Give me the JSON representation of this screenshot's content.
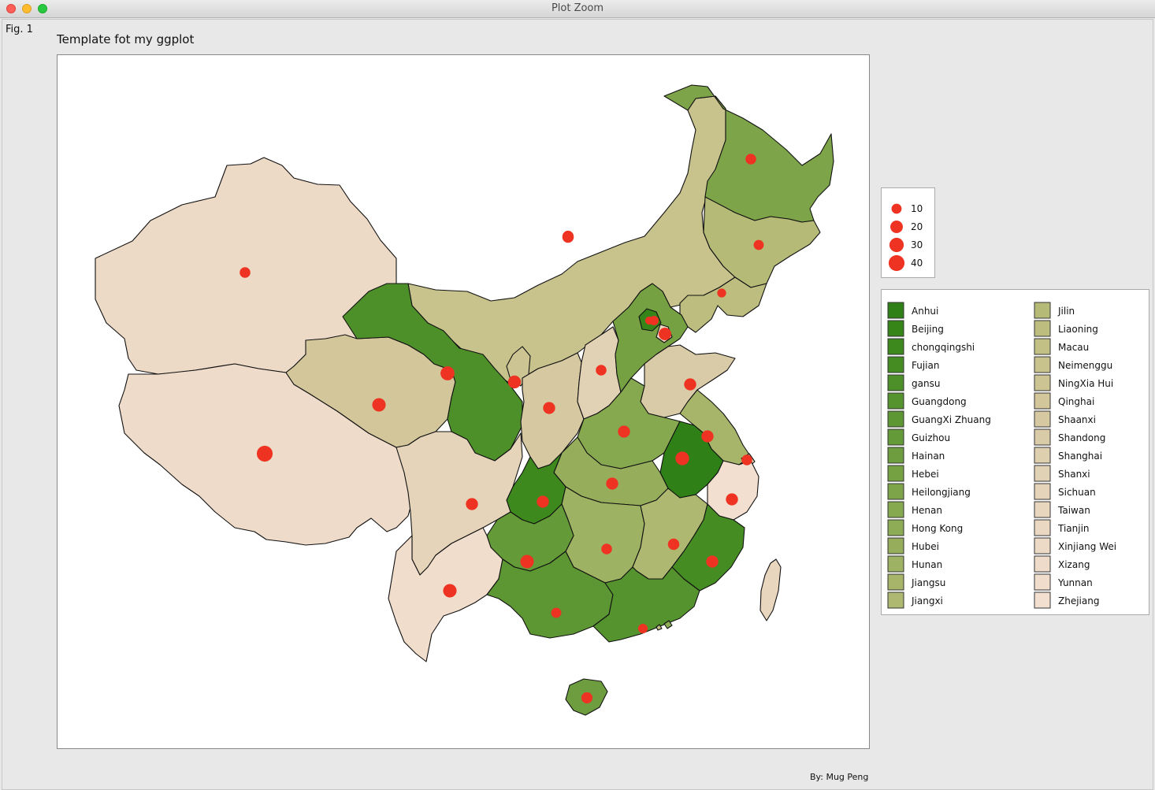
{
  "window": {
    "title": "Plot Zoom"
  },
  "figure": {
    "tag": "Fig. 1",
    "title": "Template fot my ggplot",
    "caption": "By: Mug Peng"
  },
  "colors": {
    "point": "#ee3322",
    "border": "#111111",
    "panel_background": "#ffffff"
  },
  "size_legend": {
    "entries": [
      {
        "label": "10",
        "value": 10
      },
      {
        "label": "20",
        "value": 20
      },
      {
        "label": "30",
        "value": 30
      },
      {
        "label": "40",
        "value": 40
      }
    ]
  },
  "fill_legend": {
    "entries": [
      {
        "label": "Anhui",
        "color": "#2f8016"
      },
      {
        "label": "Beijing",
        "color": "#368519"
      },
      {
        "label": "chongqingshi",
        "color": "#3d891e"
      },
      {
        "label": "Fujian",
        "color": "#458c23"
      },
      {
        "label": "gansu",
        "color": "#4d8f28"
      },
      {
        "label": "Guangdong",
        "color": "#55932e"
      },
      {
        "label": "GuangXi Zhuang",
        "color": "#5d9733"
      },
      {
        "label": "Guizhou",
        "color": "#659a38"
      },
      {
        "label": "Hainan",
        "color": "#6d9d3e"
      },
      {
        "label": "Hebei",
        "color": "#76a143"
      },
      {
        "label": "Heilongjiang",
        "color": "#7ea449"
      },
      {
        "label": "Henan",
        "color": "#86a84f"
      },
      {
        "label": "Hong Kong",
        "color": "#8eab56"
      },
      {
        "label": "Hubei",
        "color": "#96ae5c"
      },
      {
        "label": "Hunan",
        "color": "#9eb263"
      },
      {
        "label": "Jiangsu",
        "color": "#a6b56a"
      },
      {
        "label": "Jiangxi",
        "color": "#aeb870"
      },
      {
        "label": "Jilin",
        "color": "#b5bb77"
      },
      {
        "label": "Liaoning",
        "color": "#bcbd7e"
      },
      {
        "label": "Macau",
        "color": "#c2c085"
      },
      {
        "label": "Neimenggu",
        "color": "#c8c28c"
      },
      {
        "label": "NingXia Hui",
        "color": "#cdc493"
      },
      {
        "label": "Qinghai",
        "color": "#d2c69a"
      },
      {
        "label": "Shaanxi",
        "color": "#d6c8a1"
      },
      {
        "label": "Shandong",
        "color": "#dacba8"
      },
      {
        "label": "Shanghai",
        "color": "#decfaf"
      },
      {
        "label": "Shanxi",
        "color": "#e2d2b5"
      },
      {
        "label": "Sichuan",
        "color": "#e5d4ba"
      },
      {
        "label": "Taiwan",
        "color": "#e8d6bf"
      },
      {
        "label": "Tianjin",
        "color": "#ead8c3"
      },
      {
        "label": "Xinjiang Wei",
        "color": "#ecd9c6"
      },
      {
        "label": "Xizang",
        "color": "#eedbc9"
      },
      {
        "label": "Yunnan",
        "color": "#f0ddcc"
      },
      {
        "label": "Zhejiang",
        "color": "#f2dfd0"
      }
    ]
  },
  "provinces": [
    {
      "name": "Xinjiang Wei",
      "color": "#ecd9c6",
      "value": 12
    },
    {
      "name": "Xizang",
      "color": "#eedbc9",
      "value": 40
    },
    {
      "name": "Qinghai",
      "color": "#d2c69a",
      "value": 25
    },
    {
      "name": "Neimenggu",
      "color": "#c8c28c",
      "value": 15
    },
    {
      "name": "Heilongjiang",
      "color": "#7ea449",
      "value": 12
    },
    {
      "name": "Jilin",
      "color": "#b5bb77",
      "value": 10
    },
    {
      "name": "Liaoning",
      "color": "#bcbd7e",
      "value": 6
    },
    {
      "name": "gansu",
      "color": "#4d8f28",
      "value": 28
    },
    {
      "name": "NingXia Hui",
      "color": "#cdc493",
      "value": 22
    },
    {
      "name": "Shaanxi",
      "color": "#d6c8a1",
      "value": 18
    },
    {
      "name": "Shanxi",
      "color": "#e2d2b5",
      "value": 12
    },
    {
      "name": "Hebei",
      "color": "#76a143",
      "value": 8
    },
    {
      "name": "Beijing",
      "color": "#368519",
      "value": 4
    },
    {
      "name": "Tianjin",
      "color": "#ead8c3",
      "value": 20
    },
    {
      "name": "Shandong",
      "color": "#dacba8",
      "value": 18
    },
    {
      "name": "Henan",
      "color": "#86a84f",
      "value": 18
    },
    {
      "name": "Jiangsu",
      "color": "#a6b56a",
      "value": 18
    },
    {
      "name": "Shanghai",
      "color": "#decfaf",
      "value": 12
    },
    {
      "name": "Anhui",
      "color": "#2f8016",
      "value": 26
    },
    {
      "name": "Zhejiang",
      "color": "#f2dfd0",
      "value": 18
    },
    {
      "name": "Hubei",
      "color": "#96ae5c",
      "value": 18
    },
    {
      "name": "chongqingshi",
      "color": "#3d891e",
      "value": 18
    },
    {
      "name": "Sichuan",
      "color": "#e5d4ba",
      "value": 18
    },
    {
      "name": "Hunan",
      "color": "#9eb263",
      "value": 12
    },
    {
      "name": "Jiangxi",
      "color": "#aeb870",
      "value": 15
    },
    {
      "name": "Fujian",
      "color": "#458c23",
      "value": 18
    },
    {
      "name": "Guizhou",
      "color": "#659a38",
      "value": 25
    },
    {
      "name": "Yunnan",
      "color": "#f0ddcc",
      "value": 25
    },
    {
      "name": "GuangXi Zhuang",
      "color": "#5d9733",
      "value": 10
    },
    {
      "name": "Guangdong",
      "color": "#55932e",
      "value": 8
    },
    {
      "name": "Hong Kong",
      "color": "#8eab56",
      "value": null
    },
    {
      "name": "Macau",
      "color": "#c2c085",
      "value": null
    },
    {
      "name": "Hainan",
      "color": "#6d9d3e",
      "value": 14
    },
    {
      "name": "Taiwan",
      "color": "#e8d6bf",
      "value": null
    }
  ],
  "unlinked_point": {
    "value": 14
  }
}
